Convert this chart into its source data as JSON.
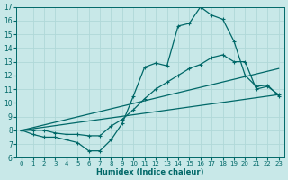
{
  "background_color": "#c8e8e8",
  "grid_color": "#b0d8d8",
  "line_color": "#006868",
  "xlabel": "Humidex (Indice chaleur)",
  "xlim": [
    -0.5,
    23.5
  ],
  "ylim": [
    6,
    17
  ],
  "xticks": [
    0,
    1,
    2,
    3,
    4,
    5,
    6,
    7,
    8,
    9,
    10,
    11,
    12,
    13,
    14,
    15,
    16,
    17,
    18,
    19,
    20,
    21,
    22,
    23
  ],
  "yticks": [
    6,
    7,
    8,
    9,
    10,
    11,
    12,
    13,
    14,
    15,
    16,
    17
  ],
  "line1_x": [
    0,
    1,
    2,
    3,
    4,
    5,
    6,
    7,
    8,
    9,
    10,
    11,
    12,
    13,
    14,
    15,
    16,
    17,
    18,
    19,
    20,
    21,
    22,
    23
  ],
  "line1_y": [
    8.0,
    7.7,
    7.5,
    7.5,
    7.3,
    7.1,
    6.5,
    6.5,
    7.3,
    8.5,
    10.5,
    12.6,
    12.9,
    12.7,
    15.6,
    15.8,
    17.0,
    16.4,
    16.1,
    14.5,
    12.0,
    11.2,
    11.3,
    10.5
  ],
  "line2_x": [
    0,
    1,
    2,
    3,
    4,
    5,
    6,
    7,
    8,
    9,
    10,
    11,
    12,
    13,
    14,
    15,
    16,
    17,
    18,
    19,
    20,
    21,
    22,
    23
  ],
  "line2_y": [
    8.0,
    8.0,
    8.0,
    7.8,
    7.7,
    7.7,
    7.6,
    7.6,
    8.3,
    8.8,
    9.5,
    10.3,
    11.0,
    11.5,
    12.0,
    12.5,
    12.8,
    13.3,
    13.5,
    13.0,
    13.0,
    11.0,
    11.2,
    10.6
  ],
  "line3_x": [
    0,
    23
  ],
  "line3_y": [
    8.0,
    10.6
  ],
  "line4_x": [
    0,
    23
  ],
  "line4_y": [
    8.0,
    12.5
  ]
}
